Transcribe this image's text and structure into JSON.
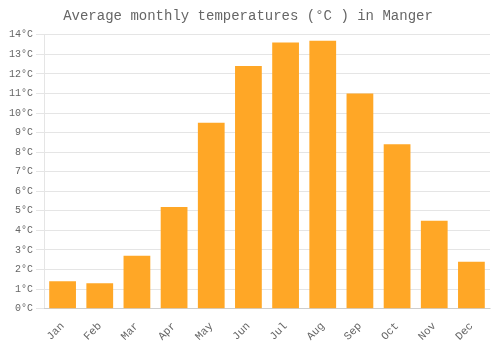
{
  "chart_data": {
    "type": "bar",
    "title": "Average monthly temperatures (°C ) in Manger",
    "categories": [
      "Jan",
      "Feb",
      "Mar",
      "Apr",
      "May",
      "Jun",
      "Jul",
      "Aug",
      "Sep",
      "Oct",
      "Nov",
      "Dec"
    ],
    "values": [
      1.4,
      1.3,
      2.7,
      5.2,
      9.5,
      12.4,
      13.6,
      13.7,
      11.0,
      8.4,
      4.5,
      2.4
    ],
    "color": "#FFA726",
    "ylim": [
      0,
      14
    ],
    "yticks": [
      {
        "value": 0,
        "label": "0°C"
      },
      {
        "value": 1,
        "label": "1°C"
      },
      {
        "value": 2,
        "label": "2°C"
      },
      {
        "value": 3,
        "label": "3°C"
      },
      {
        "value": 4,
        "label": "4°C"
      },
      {
        "value": 5,
        "label": "5°C"
      },
      {
        "value": 6,
        "label": "6°C"
      },
      {
        "value": 7,
        "label": "7°C"
      },
      {
        "value": 8,
        "label": "8°C"
      },
      {
        "value": 9,
        "label": "9°C"
      },
      {
        "value": 10,
        "label": "10°C"
      },
      {
        "value": 11,
        "label": "11°C"
      },
      {
        "value": 12,
        "label": "12°C"
      },
      {
        "value": 13,
        "label": "13°C"
      },
      {
        "value": 14,
        "label": "14°C"
      }
    ],
    "grid": true
  }
}
